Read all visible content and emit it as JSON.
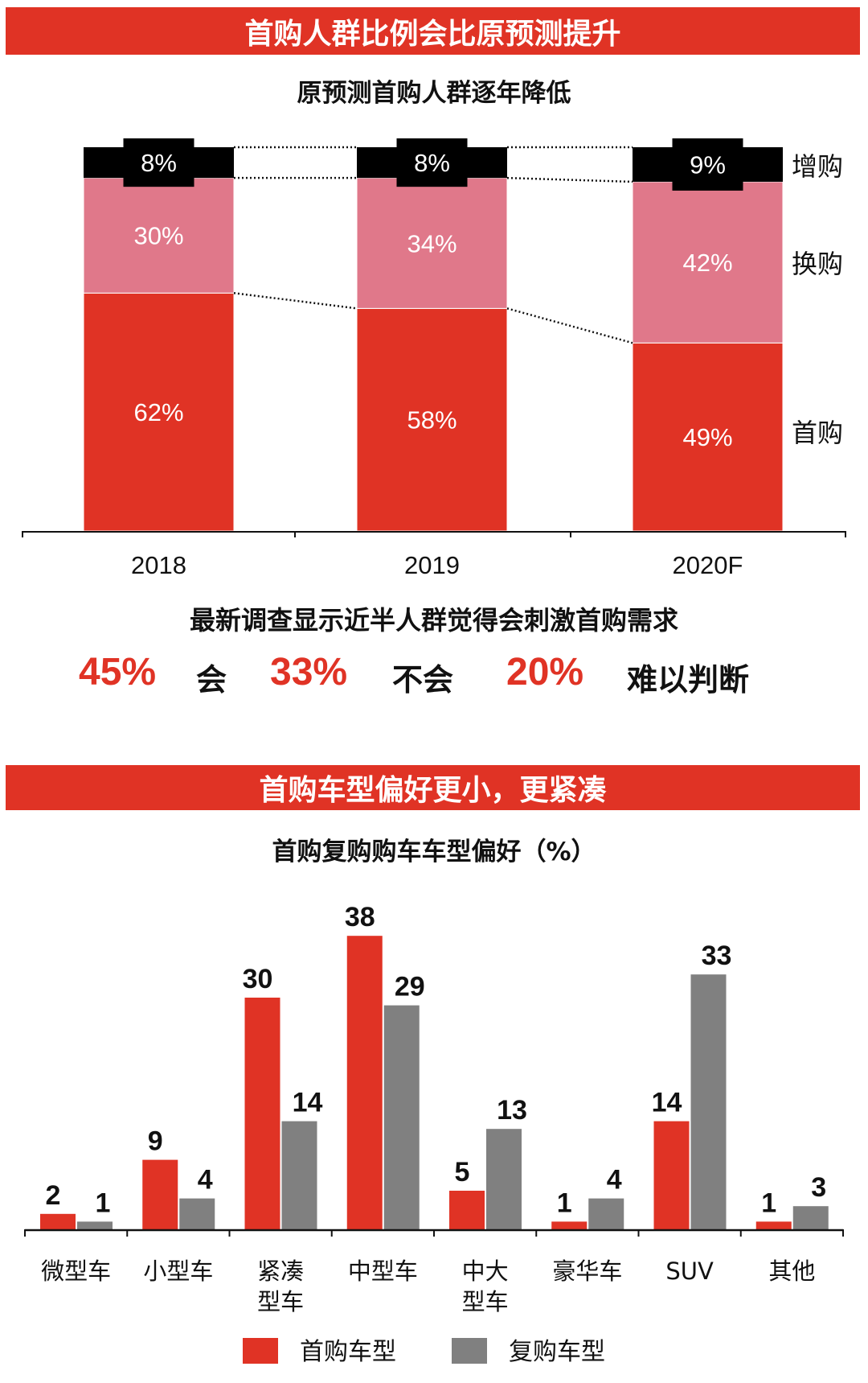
{
  "section1": {
    "banner": "首购人群比例会比原预测提升",
    "survey_title": "最新调查显示近半人群觉得会刺激首购需求",
    "stats": [
      {
        "value": "45%",
        "label": "会"
      },
      {
        "value": "33%",
        "label": "不会"
      },
      {
        "value": "20%",
        "label": "难以判断"
      }
    ]
  },
  "section2": {
    "banner": "首购车型偏好更小，更紧凑"
  },
  "colors": {
    "red": "#e03325",
    "pink": "#e0788a",
    "black": "#000000",
    "gray": "#808080"
  },
  "chart_data": [
    {
      "type": "bar",
      "stacked": true,
      "title": "原预测首购人群逐年降低",
      "categories": [
        "2018",
        "2019",
        "2020F"
      ],
      "series": [
        {
          "name": "首购",
          "values": [
            62,
            58,
            49
          ],
          "labels": [
            "62%",
            "58%",
            "49%"
          ],
          "color": "#e03325"
        },
        {
          "name": "换购",
          "values": [
            30,
            34,
            42
          ],
          "labels": [
            "30%",
            "34%",
            "42%"
          ],
          "color": "#e0788a"
        },
        {
          "name": "增购",
          "values": [
            8,
            8,
            9
          ],
          "labels": [
            "8%",
            "8%",
            "9%"
          ],
          "color": "#000000"
        }
      ],
      "ylim": [
        0,
        100
      ],
      "legend": "right",
      "grid": false
    },
    {
      "type": "bar",
      "title": "首购复购购车车型偏好（%）",
      "categories": [
        "微型车",
        "小型车",
        "紧凑型车",
        "中型车",
        "中大型车",
        "豪华车",
        "SUV",
        "其他"
      ],
      "series": [
        {
          "name": "首购车型",
          "values": [
            2,
            9,
            30,
            38,
            5,
            1,
            14,
            1
          ],
          "color": "#e03325"
        },
        {
          "name": "复购车型",
          "values": [
            1,
            4,
            14,
            29,
            13,
            4,
            33,
            3
          ],
          "color": "#808080"
        }
      ],
      "legend": "bottom",
      "grid": false
    }
  ]
}
